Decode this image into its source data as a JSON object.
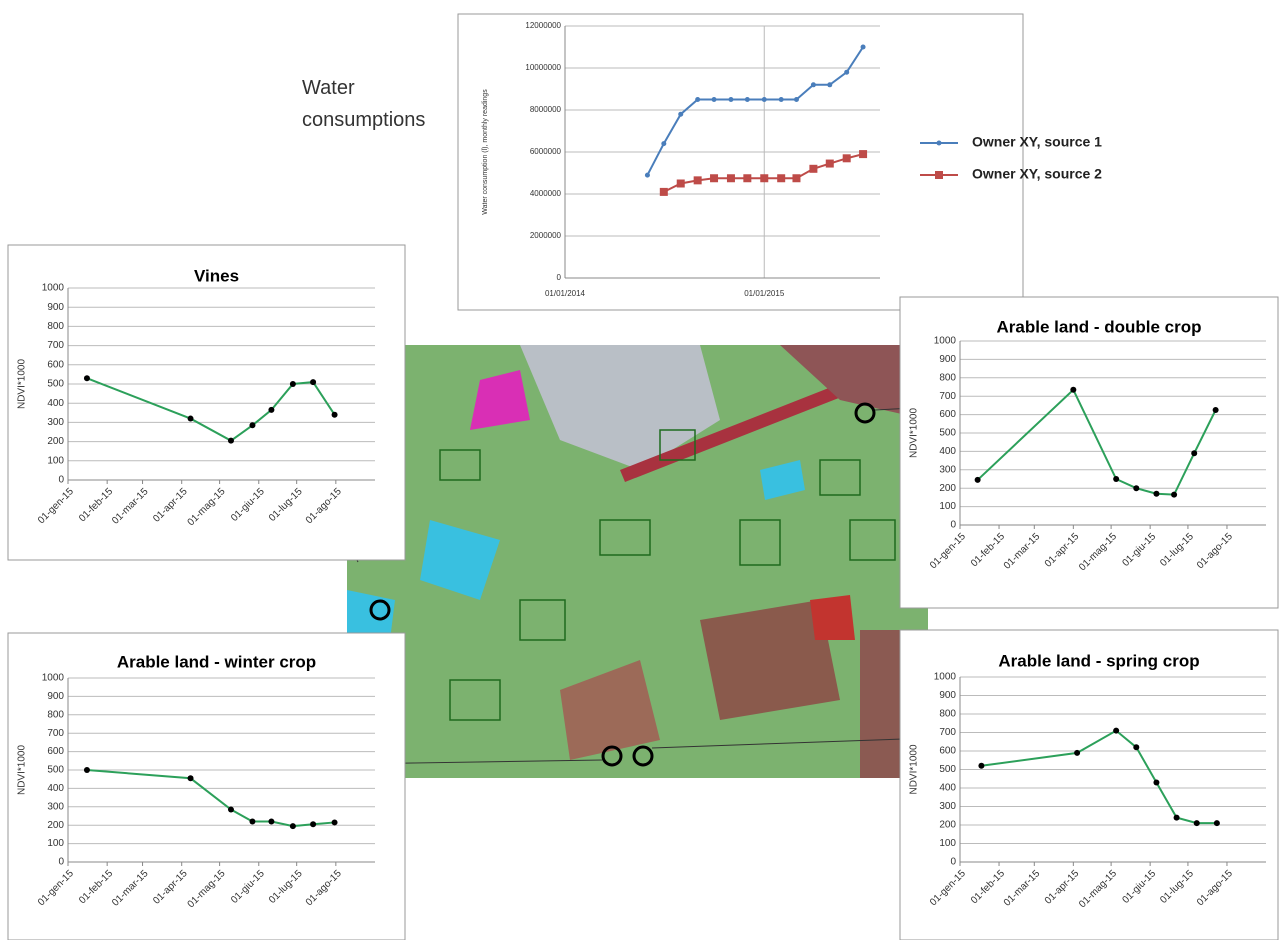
{
  "chart_data": [
    {
      "type": "line",
      "annotation": "Water consumptions",
      "ylabel": "Water consumption (l), monthly readings",
      "x": [
        "2014-06-01",
        "2014-07-01",
        "2014-08-01",
        "2014-09-01",
        "2014-10-01",
        "2014-11-01",
        "2014-12-01",
        "2015-01-01",
        "2015-02-01",
        "2015-03-01",
        "2015-04-01",
        "2015-05-01",
        "2015-06-01",
        "2015-07-01"
      ],
      "series": [
        {
          "name": "Owner XY, source 1",
          "color": "#4a7ebb",
          "marker": "circle",
          "values": [
            4900000,
            6400000,
            7800000,
            8500000,
            8500000,
            8500000,
            8500000,
            8500000,
            8500000,
            8500000,
            9200000,
            9200000,
            9800000,
            11000000
          ]
        },
        {
          "name": "Owner XY, source 2",
          "color": "#be4b48",
          "marker": "square",
          "values": [
            null,
            4100000,
            4500000,
            4650000,
            4750000,
            4750000,
            4750000,
            4750000,
            4750000,
            4750000,
            5200000,
            5450000,
            5700000,
            5900000
          ]
        }
      ],
      "xlim": [
        "2014-01-01",
        "2015-08-01"
      ],
      "xticks": [
        {
          "value": "2014-01-01",
          "label": "01/01/2014"
        },
        {
          "value": "2015-01-01",
          "label": "01/01/2015"
        }
      ],
      "ylim": [
        0,
        12000000
      ],
      "yticks": [
        0,
        2000000,
        4000000,
        6000000,
        8000000,
        10000000,
        12000000
      ],
      "grid": true
    },
    {
      "type": "line",
      "title": "Vines",
      "ylabel": "NDVI*1000",
      "x": [
        "2015-01-16",
        "2015-04-08",
        "2015-05-10",
        "2015-05-27",
        "2015-06-11",
        "2015-06-28",
        "2015-07-14",
        "2015-07-31"
      ],
      "series": [
        {
          "name": null,
          "color": "#2ca05a",
          "marker": "dot",
          "values": [
            530,
            320,
            205,
            285,
            365,
            500,
            510,
            340
          ]
        }
      ],
      "xlim": [
        "2015-01-01",
        "2015-09-01"
      ],
      "xticks": [
        {
          "value": "2015-01-01",
          "label": "01-gen-15"
        },
        {
          "value": "2015-02-01",
          "label": "01-feb-15"
        },
        {
          "value": "2015-03-01",
          "label": "01-mar-15"
        },
        {
          "value": "2015-04-01",
          "label": "01-apr-15"
        },
        {
          "value": "2015-05-01",
          "label": "01-mag-15"
        },
        {
          "value": "2015-06-01",
          "label": "01-giu-15"
        },
        {
          "value": "2015-07-01",
          "label": "01-lug-15"
        },
        {
          "value": "2015-08-01",
          "label": "01-ago-15"
        }
      ],
      "ylim": [
        0,
        1000
      ],
      "yticks": [
        0,
        100,
        200,
        300,
        400,
        500,
        600,
        700,
        800,
        900,
        1000
      ],
      "grid": true
    },
    {
      "type": "line",
      "title": "Arable land - double crop",
      "ylabel": "NDVI*1000",
      "x": [
        "2015-01-15",
        "2015-04-01",
        "2015-05-05",
        "2015-05-21",
        "2015-06-06",
        "2015-06-20",
        "2015-07-06",
        "2015-07-23"
      ],
      "series": [
        {
          "name": null,
          "color": "#2ca05a",
          "marker": "dot",
          "values": [
            245,
            735,
            250,
            200,
            170,
            165,
            390,
            625
          ]
        }
      ],
      "xlim": [
        "2015-01-01",
        "2015-09-01"
      ],
      "xticks": [
        {
          "value": "2015-01-01",
          "label": "01-gen-15"
        },
        {
          "value": "2015-02-01",
          "label": "01-feb-15"
        },
        {
          "value": "2015-03-01",
          "label": "01-mar-15"
        },
        {
          "value": "2015-04-01",
          "label": "01-apr-15"
        },
        {
          "value": "2015-05-01",
          "label": "01-mag-15"
        },
        {
          "value": "2015-06-01",
          "label": "01-giu-15"
        },
        {
          "value": "2015-07-01",
          "label": "01-lug-15"
        },
        {
          "value": "2015-08-01",
          "label": "01-ago-15"
        }
      ],
      "ylim": [
        0,
        1000
      ],
      "yticks": [
        0,
        100,
        200,
        300,
        400,
        500,
        600,
        700,
        800,
        900,
        1000
      ],
      "grid": true
    },
    {
      "type": "line",
      "title": "Arable land - winter crop",
      "ylabel": "NDVI*1000",
      "x": [
        "2015-01-16",
        "2015-04-08",
        "2015-05-10",
        "2015-05-27",
        "2015-06-11",
        "2015-06-28",
        "2015-07-14",
        "2015-07-31"
      ],
      "series": [
        {
          "name": null,
          "color": "#2ca05a",
          "marker": "dot",
          "values": [
            500,
            455,
            285,
            220,
            220,
            195,
            205,
            215
          ]
        }
      ],
      "xlim": [
        "2015-01-01",
        "2015-09-01"
      ],
      "xticks": [
        {
          "value": "2015-01-01",
          "label": "01-gen-15"
        },
        {
          "value": "2015-02-01",
          "label": "01-feb-15"
        },
        {
          "value": "2015-03-01",
          "label": "01-mar-15"
        },
        {
          "value": "2015-04-01",
          "label": "01-apr-15"
        },
        {
          "value": "2015-05-01",
          "label": "01-mag-15"
        },
        {
          "value": "2015-06-01",
          "label": "01-giu-15"
        },
        {
          "value": "2015-07-01",
          "label": "01-lug-15"
        },
        {
          "value": "2015-08-01",
          "label": "01-ago-15"
        }
      ],
      "ylim": [
        0,
        1000
      ],
      "yticks": [
        0,
        100,
        200,
        300,
        400,
        500,
        600,
        700,
        800,
        900,
        1000
      ],
      "grid": true
    },
    {
      "type": "line",
      "title": "Arable land - spring crop",
      "ylabel": "NDVI*1000",
      "x": [
        "2015-01-18",
        "2015-04-04",
        "2015-05-05",
        "2015-05-21",
        "2015-06-06",
        "2015-06-22",
        "2015-07-08",
        "2015-07-24"
      ],
      "series": [
        {
          "name": null,
          "color": "#2ca05a",
          "marker": "dot",
          "values": [
            520,
            590,
            710,
            620,
            430,
            240,
            210,
            210
          ]
        }
      ],
      "xlim": [
        "2015-01-01",
        "2015-09-01"
      ],
      "xticks": [
        {
          "value": "2015-01-01",
          "label": "01-gen-15"
        },
        {
          "value": "2015-02-01",
          "label": "01-feb-15"
        },
        {
          "value": "2015-03-01",
          "label": "01-mar-15"
        },
        {
          "value": "2015-04-01",
          "label": "01-apr-15"
        },
        {
          "value": "2015-05-01",
          "label": "01-mag-15"
        },
        {
          "value": "2015-06-01",
          "label": "01-giu-15"
        },
        {
          "value": "2015-07-01",
          "label": "01-lug-15"
        },
        {
          "value": "2015-08-01",
          "label": "01-ago-15"
        }
      ],
      "ylim": [
        0,
        1000
      ],
      "yticks": [
        0,
        100,
        200,
        300,
        400,
        500,
        600,
        700,
        800,
        900,
        1000
      ],
      "grid": true
    }
  ]
}
